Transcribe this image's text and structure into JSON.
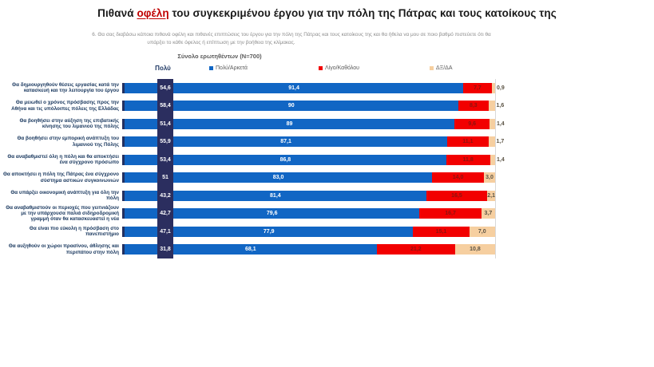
{
  "title": {
    "prefix": "Πιθανά ",
    "highlight": "οφέλη",
    "suffix": " του συγκεκριμένου έργου για την πόλη της Πάτρας και τους κατοίκους της"
  },
  "subtitle_line1": "6. Θα σας διαβάσω κάποια πιθανά οφέλη και πιθανές επιπτώσεις του έργου για την πόλη της Πάτρας και τους κατοίκους της και θα ήθελα να μου σε ποιο βαθμό πιστεύετε ότι θα",
  "subtitle_line2": "υπάρξει το κάθε όφελος ή επίπτωση με την βοήθεια της κλίμακας.",
  "sample_label": "Σύνολο ερωτηθέντων (Ν=700)",
  "legend": {
    "poly_header": "Πολύ",
    "items": [
      {
        "label": "Πολύ/Αρκετά",
        "color": "#1166c4"
      },
      {
        "label": "Λίγο/Καθόλου",
        "color": "#f20000"
      },
      {
        "label": "ΔΞ/ΔΑ",
        "color": "#f6cfa0"
      }
    ]
  },
  "chart_data": {
    "type": "bar",
    "stacked": true,
    "orientation": "horizontal",
    "xlim": [
      0,
      100
    ],
    "categories": [
      "Θα δημιουργηθούν θέσεις εργασίας κατά την κατασκευή και την λειτουργία του έργου",
      "Θα μειωθεί ο χρόνος πρόσβασης προς την Αθήνα και τις υπόλοιπες πόλεις της Ελλάδας",
      "Θα βοηθήσει στην αύξηση της επιβατικής κίνησης του λιμανιού της πόλης",
      "Θα βοηθήσει στην εμπορική ανάπτυξη του λιμανιού της Πόλης",
      "Θα αναβαθμιστεί όλη η πόλη και θα αποκτήσει ένα σύγχρονο πρόσωπο",
      "Θα αποκτήσει η πόλη της Πάτρας ένα σύγχρονο σύστημα αστικών συγκοινωνιών",
      "Θα υπάρξει οικονομική ανάπτυξη για όλη την πόλη",
      "Θα αναβαθμιστούν οι περιοχές που γειτνιάζουν με την υπάρχουσα παλιά σιδηροδρομική γραμμή όταν θα κατασκευαστεί η νέα",
      "Θα είναι πιο εύκολη η πρόσβαση στο πανεπιστήμιο",
      "Θα αυξηθούν οι χώροι πρασίνου, άθλησης και περιπάτου στην πόλη"
    ],
    "poly_values": [
      "54,6",
      "58,4",
      "51,4",
      "55,9",
      "53,4",
      "51",
      "43,2",
      "42,7",
      "47,1",
      "31,8"
    ],
    "series": [
      {
        "name": "Πολύ/Αρκετά",
        "color": "#1166c4",
        "values": [
          91.4,
          90,
          89,
          87.1,
          86.8,
          83.0,
          81.4,
          79.6,
          77.9,
          68.1
        ],
        "labels": [
          "91,4",
          "90",
          "89",
          "87,1",
          "86,8",
          "83,0",
          "81,4",
          "79,6",
          "77,9",
          "68,1"
        ]
      },
      {
        "name": "Λίγο/Καθόλου",
        "color": "#f20000",
        "values": [
          7.7,
          8.3,
          9.6,
          11.1,
          11.8,
          14.0,
          16.5,
          16.7,
          15.1,
          21.2
        ],
        "labels": [
          "7,7",
          "8,3",
          "9,6",
          "11,1",
          "11,8",
          "14,0",
          "16,5",
          "16,7",
          "15,1",
          "21,2"
        ]
      },
      {
        "name": "ΔΞ/ΔΑ",
        "color": "#f6cfa0",
        "values": [
          0.9,
          1.6,
          1.4,
          1.7,
          1.4,
          3.0,
          2.1,
          3.7,
          7.0,
          10.8
        ],
        "labels": [
          "0,9",
          "1,6",
          "1,4",
          "1,7",
          "1,4",
          "3,0",
          "2,1",
          "3,7",
          "7,0",
          "10,8"
        ]
      }
    ],
    "stripe_color": "#2b2e5f",
    "title": "Πιθανά οφέλη του συγκεκριμένου έργου για την πόλη της Πάτρας και τους κατοίκους της"
  }
}
